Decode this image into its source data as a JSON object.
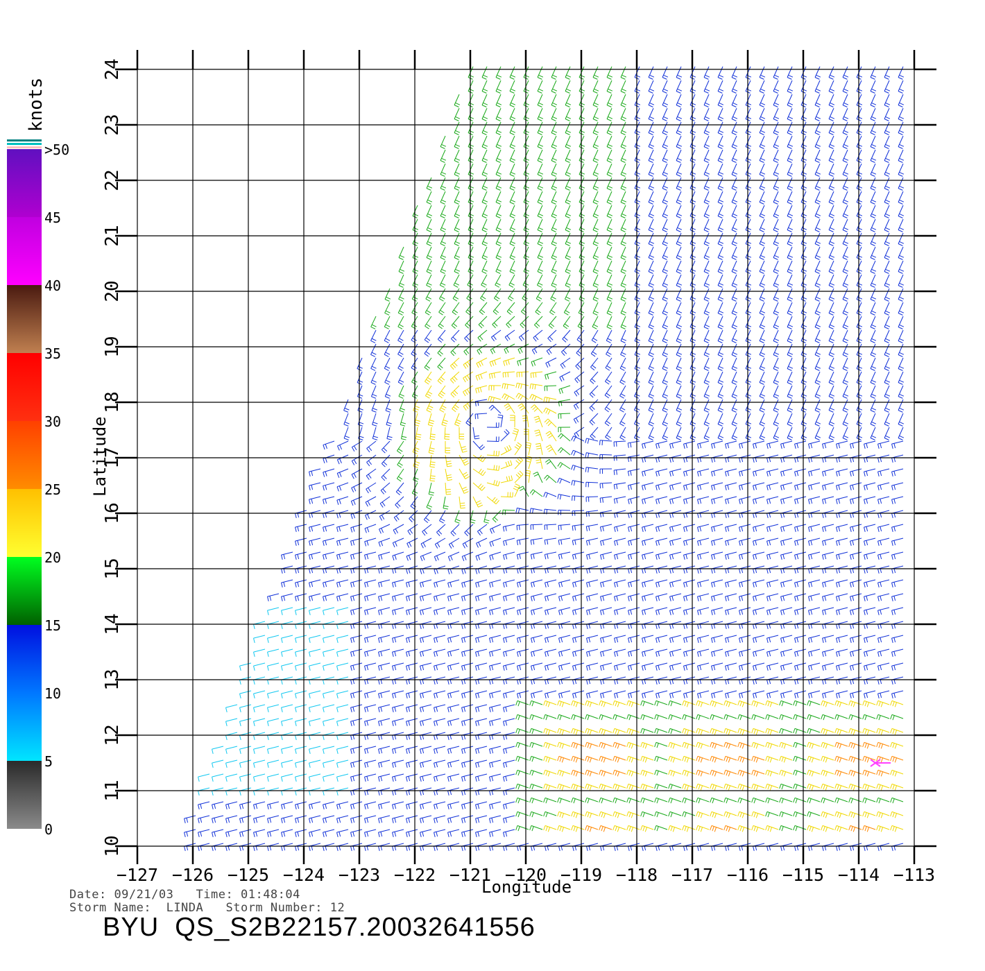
{
  "colorbar": {
    "unit_label": "knots",
    "tick_labels": [
      ">50",
      "45",
      "40",
      "35",
      "30",
      "25",
      "20",
      "15",
      "10",
      "5",
      "0"
    ],
    "segments": [
      {
        "from": 0,
        "to": 5,
        "colors": [
          "#8a8a8a",
          "#2a2a2a"
        ]
      },
      {
        "from": 5,
        "to": 10,
        "colors": [
          "#00e5ff",
          "#0077ff"
        ]
      },
      {
        "from": 10,
        "to": 15,
        "colors": [
          "#0077ff",
          "#0010e0"
        ]
      },
      {
        "from": 15,
        "to": 20,
        "colors": [
          "#006000",
          "#00ff20"
        ]
      },
      {
        "from": 20,
        "to": 25,
        "colors": [
          "#ffff30",
          "#ffc000"
        ]
      },
      {
        "from": 25,
        "to": 30,
        "colors": [
          "#ff8c00",
          "#ff4000"
        ]
      },
      {
        "from": 30,
        "to": 35,
        "colors": [
          "#ff3010",
          "#ff0000"
        ]
      },
      {
        "from": 35,
        "to": 40,
        "colors": [
          "#c08050",
          "#4a1a10"
        ]
      },
      {
        "from": 40,
        "to": 45,
        "colors": [
          "#ff00ff",
          "#c000e0"
        ]
      },
      {
        "from": 45,
        "to": 50,
        "colors": [
          "#b000d0",
          "#6010c0"
        ]
      }
    ],
    "over_colors": [
      "#ffc0c0",
      "#00c0c0",
      "#008080"
    ]
  },
  "map": {
    "xlabel": "Longitude",
    "ylabel": "Latitude",
    "lon_range": [
      -127,
      -113
    ],
    "lat_range": [
      10,
      24
    ],
    "lon_ticks": [
      -127,
      -126,
      -125,
      -124,
      -123,
      -122,
      -121,
      -120,
      -119,
      -118,
      -117,
      -116,
      -115,
      -114,
      -113
    ],
    "lat_ticks": [
      10,
      11,
      12,
      13,
      14,
      15,
      16,
      17,
      18,
      19,
      20,
      21,
      22,
      23,
      24
    ],
    "lon_tick_labels": [
      "−127",
      "−126",
      "−125",
      "−124",
      "−123",
      "−122",
      "−121",
      "−120",
      "−119",
      "−118",
      "−117",
      "−116",
      "−115",
      "−114",
      "−113"
    ],
    "lat_tick_labels": [
      "10",
      "11",
      "12",
      "13",
      "14",
      "15",
      "16",
      "17",
      "18",
      "19",
      "20",
      "21",
      "22",
      "23",
      "24"
    ],
    "grid": true,
    "swath_west_edge": [
      [
        -121.0,
        24.2
      ],
      [
        -126.2,
        10.0
      ]
    ],
    "storm_center": {
      "lon": -120.7,
      "lat": 17.6
    },
    "storm_marker_lon_lat": [
      -113.7,
      11.5
    ],
    "storm_marker_color": "#ff40ff"
  },
  "footer": {
    "date_label": "Date:",
    "date": "09/21/03",
    "time_label": "Time:",
    "time": "01:48:04",
    "storm_name_label": "Storm Name:",
    "storm_name": "LINDA",
    "storm_number_label": "Storm Number:",
    "storm_number": "12",
    "product_id": "BYU  QS_S2B22157.20032641556"
  }
}
